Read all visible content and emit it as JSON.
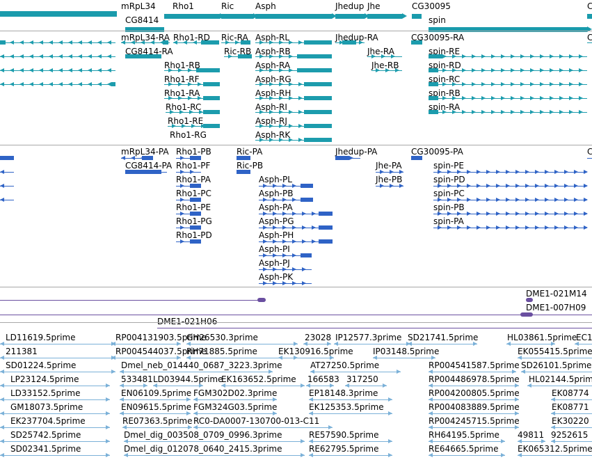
{
  "colors": {
    "gene": "#1a9bac",
    "transcript": "#1c9cad",
    "protein": "#2f63c6",
    "clone": "#6a4fa0",
    "est": "#7bb1d8",
    "separator": "#a8a8a8"
  },
  "tracks": {
    "genes": {
      "items": [
        {
          "label": "mRpL34",
          "dir": "l"
        },
        {
          "label": "Rho1",
          "dir": "r"
        },
        {
          "label": "Ric",
          "dir": "r"
        },
        {
          "label": "Asph",
          "dir": "r"
        },
        {
          "label": "Jhedup",
          "dir": "r"
        },
        {
          "label": "Jhe",
          "dir": "r"
        },
        {
          "label": "CG30095",
          "dir": "l"
        },
        {
          "label": "C",
          "dir": "r"
        },
        {
          "label": "CG8414",
          "dir": "l"
        },
        {
          "label": "spin",
          "dir": "r"
        }
      ]
    },
    "transcripts": {
      "items": [
        {
          "label": "",
          "dir": "l"
        },
        {
          "label": "",
          "dir": "l"
        },
        {
          "label": "",
          "dir": "l"
        },
        {
          "label": "",
          "dir": "l"
        },
        {
          "label": "mRpL34-RA",
          "dir": "l"
        },
        {
          "label": "Rho1-RD",
          "dir": "r"
        },
        {
          "label": "Ric-RA",
          "dir": "r"
        },
        {
          "label": "Asph-RL",
          "dir": "r"
        },
        {
          "label": "Jhedup-RA",
          "dir": "r"
        },
        {
          "label": "CG30095-RA",
          "dir": "l"
        },
        {
          "label": "C",
          "dir": "r"
        },
        {
          "label": "CG8414-RA",
          "dir": "l"
        },
        {
          "label": "Ric-RB",
          "dir": "r"
        },
        {
          "label": "Asph-RB",
          "dir": "r"
        },
        {
          "label": "Jhe-RA",
          "dir": "r"
        },
        {
          "label": "spin-RE",
          "dir": "r"
        },
        {
          "label": "Rho1-RB",
          "dir": "r"
        },
        {
          "label": "Asph-RA",
          "dir": "r"
        },
        {
          "label": "Jhe-RB",
          "dir": "r"
        },
        {
          "label": "spin-RD",
          "dir": "r"
        },
        {
          "label": "Rho1-RF",
          "dir": "r"
        },
        {
          "label": "Asph-RG",
          "dir": "r"
        },
        {
          "label": "spin-RC",
          "dir": "r"
        },
        {
          "label": "Rho1-RA",
          "dir": "r"
        },
        {
          "label": "Asph-RH",
          "dir": "r"
        },
        {
          "label": "spin-RB",
          "dir": "r"
        },
        {
          "label": "Rho1-RC",
          "dir": "r"
        },
        {
          "label": "Asph-RI",
          "dir": "r"
        },
        {
          "label": "spin-RA",
          "dir": "r"
        },
        {
          "label": "Rho1-RE",
          "dir": "r"
        },
        {
          "label": "Asph-RJ",
          "dir": "r"
        },
        {
          "label": "Rho1-RG",
          "dir": "r"
        },
        {
          "label": "Asph-RK",
          "dir": "r"
        }
      ]
    },
    "proteins": {
      "items": [
        {
          "label": "",
          "dir": "l"
        },
        {
          "label": "",
          "dir": "l"
        },
        {
          "label": "",
          "dir": "l"
        },
        {
          "label": "",
          "dir": "l"
        },
        {
          "label": "mRpL34-PA",
          "dir": "l"
        },
        {
          "label": "Rho1-PB",
          "dir": "r"
        },
        {
          "label": "Ric-PA",
          "dir": "l"
        },
        {
          "label": "Jhedup-PA",
          "dir": "r"
        },
        {
          "label": "CG30095-PA",
          "dir": "l"
        },
        {
          "label": "C",
          "dir": "r"
        },
        {
          "label": "CG8414-PA",
          "dir": "l"
        },
        {
          "label": "Rho1-PF",
          "dir": "r"
        },
        {
          "label": "Ric-PB",
          "dir": "l"
        },
        {
          "label": "Jhe-PA",
          "dir": "r"
        },
        {
          "label": "spin-PE",
          "dir": "r"
        },
        {
          "label": "Rho1-PA",
          "dir": "r"
        },
        {
          "label": "Asph-PL",
          "dir": "r"
        },
        {
          "label": "Jhe-PB",
          "dir": "r"
        },
        {
          "label": "spin-PD",
          "dir": "r"
        },
        {
          "label": "Rho1-PC",
          "dir": "r"
        },
        {
          "label": "Asph-PB",
          "dir": "r"
        },
        {
          "label": "spin-PC",
          "dir": "r"
        },
        {
          "label": "Rho1-PE",
          "dir": "r"
        },
        {
          "label": "Asph-PA",
          "dir": "r"
        },
        {
          "label": "spin-PB",
          "dir": "r"
        },
        {
          "label": "Rho1-PG",
          "dir": "r"
        },
        {
          "label": "Asph-PG",
          "dir": "r"
        },
        {
          "label": "spin-PA",
          "dir": "r"
        },
        {
          "label": "Rho1-PD",
          "dir": "r"
        },
        {
          "label": "Asph-PH",
          "dir": "r"
        },
        {
          "label": "Asph-PI",
          "dir": "r"
        },
        {
          "label": "Asph-PJ",
          "dir": "r"
        },
        {
          "label": "Asph-PK",
          "dir": "r"
        }
      ]
    },
    "clones": {
      "items": [
        {
          "label": "",
          "dir": "r"
        },
        {
          "label": "DME1-021M14",
          "dir": "r"
        },
        {
          "label": "DME1-007H09",
          "dir": "r"
        },
        {
          "label": "DME1-021H06",
          "dir": "l"
        }
      ]
    },
    "ests": {
      "items": [
        {
          "label": "LD11619.5prime"
        },
        {
          "label": "RP004131903.5prime"
        },
        {
          "label": "GH26530.3prime"
        },
        {
          "label": "23028"
        },
        {
          "label": "IP12577.3prime"
        },
        {
          "label": "SD21741.5prime"
        },
        {
          "label": "HL03861.5prime"
        },
        {
          "label": "EC1"
        },
        {
          "label": "211381"
        },
        {
          "label": "RP004544037.5prime"
        },
        {
          "label": "RH71885.5prime"
        },
        {
          "label": "EK130916.5prime"
        },
        {
          "label": "IP03148.5prime"
        },
        {
          "label": "EK055415.5prime"
        },
        {
          "label": "SD01224.5prime"
        },
        {
          "label": "Dmel_neb_014440_0687_3223.3prime"
        },
        {
          "label": "AT27250.5prime"
        },
        {
          "label": "RP004541587.5prime"
        },
        {
          "label": "SD26101.5prime"
        },
        {
          "label": "LP23124.5prime"
        },
        {
          "label": "533481"
        },
        {
          "label": "LD03944.5prime"
        },
        {
          "label": "EK163652.5prime"
        },
        {
          "label": "166583"
        },
        {
          "label": "317250"
        },
        {
          "label": "RP004486978.5prime"
        },
        {
          "label": "HL02144.5prime"
        },
        {
          "label": "LD33152.5prime"
        },
        {
          "label": "EN06109.5prime"
        },
        {
          "label": "FGM302D02.3prime"
        },
        {
          "label": "EP18148.3prime"
        },
        {
          "label": "RP004200805.5prime"
        },
        {
          "label": "EK08774"
        },
        {
          "label": "GM18073.5prime"
        },
        {
          "label": "EN09615.5prime"
        },
        {
          "label": "FGM324G03.5prime"
        },
        {
          "label": "EK125353.5prime"
        },
        {
          "label": "RP004083889.5prime"
        },
        {
          "label": "EK08771"
        },
        {
          "label": "EK237704.5prime"
        },
        {
          "label": "RE07363.5prime"
        },
        {
          "label": "RC0-DA0007-130700-013-C11"
        },
        {
          "label": "RP004245715.5prime"
        },
        {
          "label": "EK30220"
        },
        {
          "label": "SD25742.5prime"
        },
        {
          "label": "Dmel_dig_003508_0709_0996.3prime"
        },
        {
          "label": "RE57590.5prime"
        },
        {
          "label": "RH64195.5prime"
        },
        {
          "label": "49811"
        },
        {
          "label": "9252615"
        },
        {
          "label": "SD02341.5prime"
        },
        {
          "label": "Dmel_dig_012078_0640_2415.3prime"
        },
        {
          "label": "RE62795.5prime"
        },
        {
          "label": "RE64665.5prime"
        },
        {
          "label": "EK065312.5prime"
        }
      ]
    }
  }
}
